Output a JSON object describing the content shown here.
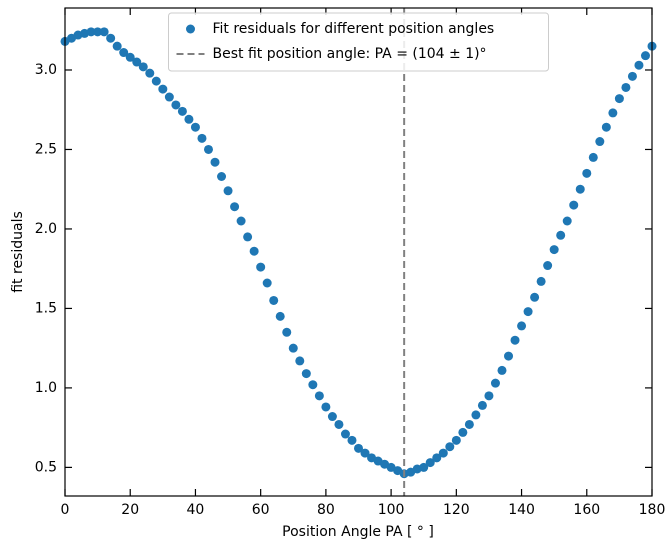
{
  "chart_data": {
    "type": "scatter",
    "x": [
      0,
      2,
      4,
      6,
      8,
      10,
      12,
      14,
      16,
      18,
      20,
      22,
      24,
      26,
      28,
      30,
      32,
      34,
      36,
      38,
      40,
      42,
      44,
      46,
      48,
      50,
      52,
      54,
      56,
      58,
      60,
      62,
      64,
      66,
      68,
      70,
      72,
      74,
      76,
      78,
      80,
      82,
      84,
      86,
      88,
      90,
      92,
      94,
      96,
      98,
      100,
      102,
      104,
      106,
      108,
      110,
      112,
      114,
      116,
      118,
      120,
      122,
      124,
      126,
      128,
      130,
      132,
      134,
      136,
      138,
      140,
      142,
      144,
      146,
      148,
      150,
      152,
      154,
      156,
      158,
      160,
      162,
      164,
      166,
      168,
      170,
      172,
      174,
      176,
      178,
      180
    ],
    "series": [
      {
        "name": "Fit residuals for different position angles",
        "color": "#1f77b4",
        "values": [
          3.18,
          3.2,
          3.22,
          3.23,
          3.24,
          3.24,
          3.24,
          3.2,
          3.15,
          3.11,
          3.08,
          3.05,
          3.02,
          2.98,
          2.93,
          2.88,
          2.83,
          2.78,
          2.74,
          2.69,
          2.64,
          2.57,
          2.5,
          2.42,
          2.33,
          2.24,
          2.14,
          2.05,
          1.95,
          1.86,
          1.76,
          1.66,
          1.55,
          1.45,
          1.35,
          1.25,
          1.17,
          1.09,
          1.02,
          0.95,
          0.88,
          0.82,
          0.77,
          0.71,
          0.67,
          0.62,
          0.59,
          0.56,
          0.54,
          0.52,
          0.5,
          0.48,
          0.46,
          0.47,
          0.49,
          0.5,
          0.53,
          0.56,
          0.59,
          0.63,
          0.67,
          0.72,
          0.77,
          0.83,
          0.89,
          0.95,
          1.03,
          1.11,
          1.2,
          1.3,
          1.39,
          1.48,
          1.57,
          1.67,
          1.77,
          1.87,
          1.96,
          2.05,
          2.15,
          2.25,
          2.35,
          2.45,
          2.55,
          2.64,
          2.73,
          2.82,
          2.89,
          2.96,
          3.03,
          3.09,
          3.15
        ]
      }
    ],
    "vline": {
      "value": 104,
      "name": "Best fit position angle: PA = (104 ± 1)°",
      "color": "#808080"
    },
    "x_label": "Position Angle PA [ ° ]",
    "y_label": "fit residuals",
    "xlim": [
      0,
      180
    ],
    "xticks": [
      0,
      20,
      40,
      60,
      80,
      100,
      120,
      140,
      160,
      180
    ],
    "ylim": [
      0.32,
      3.39
    ],
    "yticks": [
      0.5,
      {
        "value": 1,
        "label": "1.0"
      },
      1.5,
      {
        "value": 2,
        "label": "2.0"
      },
      2.5,
      {
        "value": 3,
        "label": "3.0"
      }
    ],
    "legend": "upper center"
  }
}
